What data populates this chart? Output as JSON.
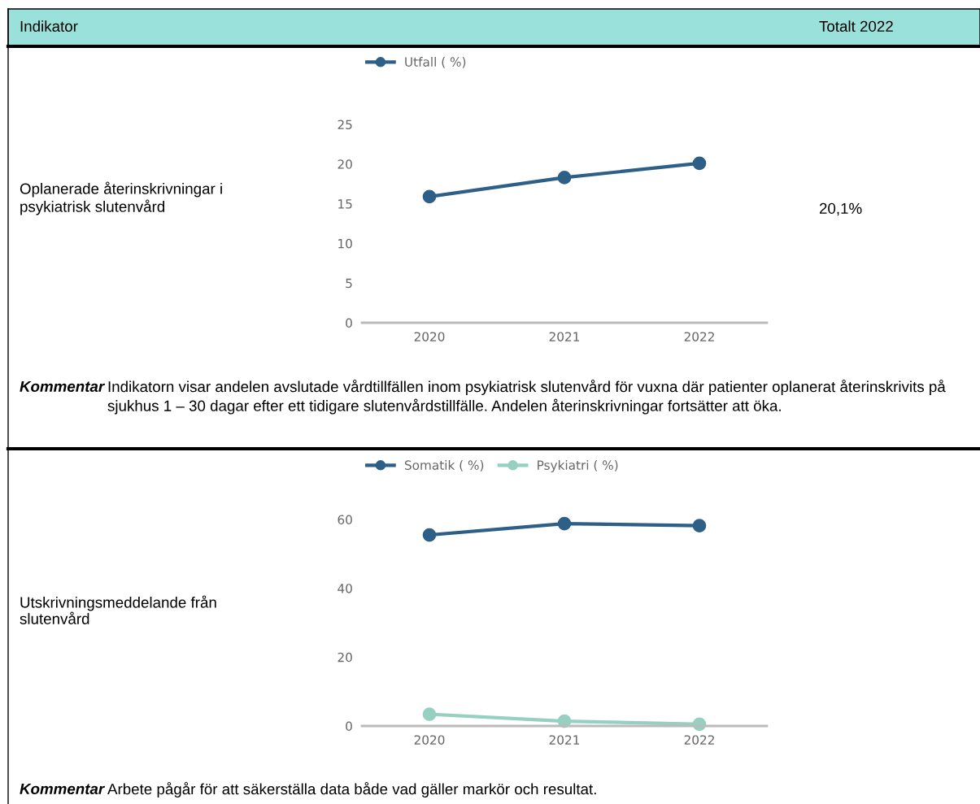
{
  "chart_data": [
    {
      "type": "line",
      "categories": [
        "2020",
        "2021",
        "2022"
      ],
      "series": [
        {
          "name": "Utfall ( %)",
          "color": "#2e5f87",
          "values": [
            15.9,
            18.3,
            20.1
          ]
        }
      ],
      "ylim": [
        0,
        25
      ],
      "yticks": [
        0,
        5,
        10,
        15,
        20,
        25
      ],
      "marker": "circle",
      "legend": "top",
      "grid": false,
      "annotations": [
        "Indikator",
        "Totalt 2022",
        "Oplanerade återinskrivningar i psykiatrisk slutenvård",
        "20,1%",
        "Kommentar",
        "Indikatorn visar andelen avslutade vårdtillfällen inom psykiatrisk slutenvård för vuxna där patienter oplanerat återinskrivits på sjukhus 1 – 30 dagar efter ett tidigare slutenvårdstillfälle. Andelen återinskrivningar fortsätter att öka."
      ]
    },
    {
      "type": "line",
      "categories": [
        "2020",
        "2021",
        "2022"
      ],
      "series": [
        {
          "name": "Somatik ( %)",
          "color": "#2e5f87",
          "values": [
            55.5,
            58.8,
            58.2
          ]
        },
        {
          "name": "Psykiatri ( %)",
          "color": "#96d0c0",
          "values": [
            3.4,
            1.4,
            0.5
          ]
        }
      ],
      "ylim": [
        0,
        60
      ],
      "yticks": [
        0,
        20,
        40,
        60
      ],
      "marker": "circle",
      "legend": "top",
      "grid": false,
      "annotations": [
        "Utskrivningsmeddelande från slutenvård",
        "Kommentar",
        "Arbete pågår för att säkerställa data både vad gäller markör och resultat."
      ]
    }
  ]
}
